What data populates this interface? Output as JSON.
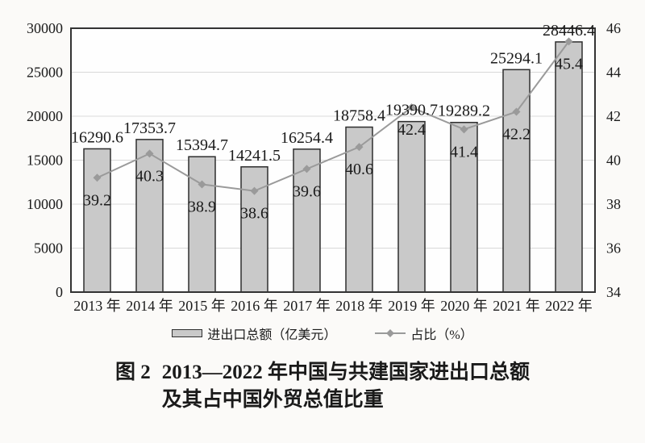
{
  "colors": {
    "bg": "#fbfaf8",
    "plot_bg": "#fefefe",
    "bar_fill": "#c9c9c9",
    "bar_border": "#2e2e2e",
    "line_color": "#9a9a9a",
    "grid": "#d9d9d9",
    "axis_border": "#333333",
    "text": "#1a1a1a"
  },
  "chart_data": {
    "type": "combo-bar-line",
    "title": "图 2 2013—2022 年中国与共建国家进出口总额及其占中国外贸总值比重",
    "categories": [
      "2013 年",
      "2014 年",
      "2015 年",
      "2016 年",
      "2017 年",
      "2018 年",
      "2019 年",
      "2020 年",
      "2021 年",
      "2022 年"
    ],
    "series": [
      {
        "name": "进出口总额（亿美元）",
        "kind": "bar",
        "axis": "left",
        "values": [
          16290.6,
          17353.7,
          15394.7,
          14241.5,
          16254.4,
          18758.4,
          19390.7,
          19289.2,
          25294.1,
          28446.4
        ]
      },
      {
        "name": "占比（%）",
        "kind": "line",
        "axis": "right",
        "values": [
          39.2,
          40.3,
          38.9,
          38.6,
          39.6,
          40.6,
          42.4,
          41.4,
          42.2,
          45.4
        ]
      }
    ],
    "left_axis": {
      "min": 0,
      "max": 30000,
      "ticks": [
        0,
        5000,
        10000,
        15000,
        20000,
        25000,
        30000
      ]
    },
    "right_axis": {
      "min": 34,
      "max": 46,
      "ticks": [
        34,
        36,
        38,
        40,
        42,
        44,
        46
      ]
    },
    "grid": true,
    "legend_position": "bottom"
  },
  "caption": {
    "prefix": "图 2",
    "line1": "2013—2022 年中国与共建国家进出口总额",
    "line2": "及其占中国外贸总值比重"
  }
}
